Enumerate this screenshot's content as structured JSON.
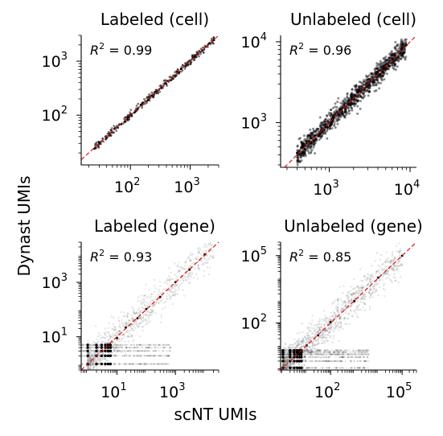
{
  "figure": {
    "xlabel": "scNT UMIs",
    "ylabel": "Dynast UMIs"
  },
  "chart_data": [
    {
      "type": "scatter",
      "title": "Labeled (cell)",
      "annotation": "R² = 0.99",
      "r2_value": "0.99",
      "xscale": "log",
      "yscale": "log",
      "xlim": [
        15,
        3000
      ],
      "ylim": [
        12,
        3000
      ],
      "xticks": [
        100,
        1000
      ],
      "xtick_labels": [
        [
          "10",
          "2"
        ],
        [
          "10",
          "3"
        ]
      ],
      "yticks": [
        100,
        1000
      ],
      "ytick_labels": [
        [
          "10",
          "2"
        ],
        [
          "10",
          "3"
        ]
      ],
      "identity_line": true,
      "point_color": "#000000",
      "line_color": "#e00000",
      "trend": {
        "x_range": [
          25,
          2500
        ],
        "relation": "y ≈ x",
        "spread": "tight"
      },
      "points": [
        [
          25,
          24
        ],
        [
          30,
          31
        ],
        [
          40,
          38
        ],
        [
          55,
          57
        ],
        [
          70,
          68
        ],
        [
          90,
          93
        ],
        [
          120,
          115
        ],
        [
          150,
          156
        ],
        [
          200,
          195
        ],
        [
          260,
          268
        ],
        [
          330,
          320
        ],
        [
          420,
          430
        ],
        [
          550,
          540
        ],
        [
          700,
          712
        ],
        [
          900,
          880
        ],
        [
          1200,
          1230
        ],
        [
          1600,
          1570
        ],
        [
          2100,
          2150
        ],
        [
          2500,
          2450
        ]
      ]
    },
    {
      "type": "scatter",
      "title": "Unlabeled (cell)",
      "annotation": "R² = 0.96",
      "r2_value": "0.96",
      "xscale": "log",
      "yscale": "log",
      "xlim": [
        250,
        12000
      ],
      "ylim": [
        280,
        12000
      ],
      "xticks": [
        1000,
        10000
      ],
      "xtick_labels": [
        [
          "10",
          "3"
        ],
        [
          "10",
          "4"
        ]
      ],
      "yticks": [
        1000,
        10000
      ],
      "ytick_labels": [
        [
          "10",
          "3"
        ],
        [
          "10",
          "4"
        ]
      ],
      "identity_line": true,
      "point_color": "#000000",
      "line_color": "#e00000",
      "trend": {
        "x_range": [
          400,
          9000
        ],
        "relation": "y ≈ x",
        "spread": "moderate"
      },
      "points": [
        [
          400,
          420
        ],
        [
          500,
          470
        ],
        [
          600,
          640
        ],
        [
          750,
          720
        ],
        [
          900,
          950
        ],
        [
          1100,
          1050
        ],
        [
          1400,
          1450
        ],
        [
          1800,
          1720
        ],
        [
          2300,
          2400
        ],
        [
          3000,
          2900
        ],
        [
          3800,
          3950
        ],
        [
          4800,
          4700
        ],
        [
          6000,
          6200
        ],
        [
          7500,
          7300
        ],
        [
          9000,
          9100
        ]
      ]
    },
    {
      "type": "scatter",
      "title": "Labeled (gene)",
      "annotation": "R² = 0.93",
      "r2_value": "0.93",
      "xscale": "log",
      "yscale": "log",
      "xlim": [
        0.6,
        30000
      ],
      "ylim": [
        0.6,
        30000
      ],
      "xticks": [
        10,
        1000
      ],
      "xtick_labels": [
        [
          "10",
          "1"
        ],
        [
          "10",
          "3"
        ]
      ],
      "yticks": [
        10,
        1000
      ],
      "ytick_labels": [
        [
          "10",
          "1"
        ],
        [
          "10",
          "3"
        ]
      ],
      "identity_line": true,
      "point_color": "#000000",
      "line_color": "#e00000",
      "trend": {
        "x_range": [
          1,
          20000
        ],
        "relation": "y ≈ x",
        "spread": "wide at low counts"
      },
      "low_count_bands_y": [
        1,
        2,
        3,
        4,
        5
      ],
      "points": [
        [
          1,
          1
        ],
        [
          2,
          2
        ],
        [
          3,
          3
        ],
        [
          5,
          5
        ],
        [
          10,
          9
        ],
        [
          20,
          22
        ],
        [
          50,
          48
        ],
        [
          100,
          105
        ],
        [
          300,
          290
        ],
        [
          1000,
          1020
        ],
        [
          3000,
          2900
        ],
        [
          10000,
          10500
        ]
      ]
    },
    {
      "type": "scatter",
      "title": "Unlabeled (gene)",
      "annotation": "R² = 0.85",
      "r2_value": "0.85",
      "xscale": "log",
      "yscale": "log",
      "xlim": [
        0.8,
        400000
      ],
      "ylim": [
        0.8,
        400000
      ],
      "xticks": [
        100,
        100000
      ],
      "xtick_labels": [
        [
          "10",
          "2"
        ],
        [
          "10",
          "5"
        ]
      ],
      "yticks": [
        100,
        100000
      ],
      "ytick_labels": [
        [
          "10",
          "2"
        ],
        [
          "10",
          "5"
        ]
      ],
      "identity_line": true,
      "point_color": "#000000",
      "line_color": "#e00000",
      "trend": {
        "x_range": [
          1,
          100000
        ],
        "relation": "y ≈ x",
        "spread": "wide at low counts"
      },
      "low_count_bands_y": [
        1,
        2,
        3,
        4,
        5,
        6
      ],
      "points": [
        [
          1,
          1
        ],
        [
          3,
          3
        ],
        [
          10,
          10
        ],
        [
          30,
          28
        ],
        [
          100,
          110
        ],
        [
          1000,
          950
        ],
        [
          10000,
          10500
        ],
        [
          100000,
          98000
        ]
      ]
    }
  ]
}
